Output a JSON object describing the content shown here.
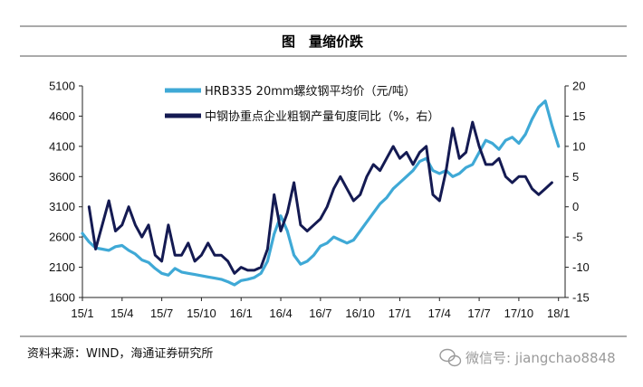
{
  "chart_data": {
    "type": "line",
    "title": "图　量缩价跌",
    "x_tick_labels": [
      "15/1",
      "15/4",
      "15/7",
      "15/10",
      "16/1",
      "16/4",
      "16/7",
      "16/10",
      "17/1",
      "17/4",
      "17/7",
      "17/10",
      "18/1"
    ],
    "x_range_months": [
      0,
      36.5
    ],
    "y_left": {
      "ticks": [
        1600,
        2100,
        2600,
        3100,
        3600,
        4100,
        4600,
        5100
      ],
      "range": [
        1600,
        5100
      ]
    },
    "y_right": {
      "ticks": [
        -15,
        -10,
        -5,
        0,
        5,
        10,
        15,
        20
      ],
      "range": [
        -15,
        20
      ]
    },
    "series": [
      {
        "name": "HRB335 20mm螺纹钢平均价（元/吨）",
        "axis": "left",
        "color": "#3fa9d6",
        "x": [
          0,
          0.5,
          1,
          1.5,
          2,
          2.5,
          3,
          3.5,
          4,
          4.5,
          5,
          5.5,
          6,
          6.5,
          7,
          7.5,
          8,
          8.5,
          9,
          9.5,
          10,
          10.5,
          11,
          11.5,
          12,
          12.5,
          13,
          13.5,
          14,
          14.5,
          15,
          15.5,
          16,
          16.5,
          17,
          17.5,
          18,
          18.5,
          19,
          19.5,
          20,
          20.5,
          21,
          21.5,
          22,
          22.5,
          23,
          23.5,
          24,
          24.5,
          25,
          25.5,
          26,
          26.5,
          27,
          27.5,
          28,
          28.5,
          29,
          29.5,
          30,
          30.5,
          31,
          31.5,
          32,
          32.5,
          33,
          33.5,
          34,
          34.5,
          35,
          35.5,
          36
        ],
        "values": [
          2660,
          2520,
          2420,
          2400,
          2380,
          2440,
          2460,
          2380,
          2320,
          2220,
          2180,
          2080,
          2000,
          1970,
          2080,
          2020,
          2000,
          1980,
          1960,
          1940,
          1920,
          1900,
          1860,
          1810,
          1880,
          1900,
          1930,
          2000,
          2200,
          2650,
          2950,
          2700,
          2300,
          2150,
          2200,
          2300,
          2450,
          2500,
          2600,
          2550,
          2500,
          2550,
          2700,
          2850,
          3000,
          3150,
          3250,
          3400,
          3500,
          3600,
          3700,
          3850,
          3900,
          3700,
          3650,
          3700,
          3600,
          3650,
          3750,
          3800,
          4000,
          4200,
          4150,
          4050,
          4200,
          4250,
          4150,
          4300,
          4550,
          4750,
          4850,
          4450,
          4100
        ]
      },
      {
        "name": "中钢协重点企业粗钢产量旬度同比（%，右）",
        "axis": "right",
        "color": "#141a52",
        "x": [
          0.5,
          1,
          1.5,
          2,
          2.5,
          3,
          3.5,
          4,
          4.5,
          5,
          5.5,
          6,
          6.5,
          7,
          7.5,
          8,
          8.5,
          9,
          9.5,
          10,
          10.5,
          11,
          11.5,
          12,
          12.5,
          13,
          13.5,
          14,
          14.5,
          15,
          15.5,
          16,
          16.5,
          17,
          17.5,
          18,
          18.5,
          19,
          19.5,
          20,
          20.5,
          21,
          21.5,
          22,
          22.5,
          23,
          23.5,
          24,
          24.5,
          25,
          25.5,
          26,
          26.5,
          27,
          27.5,
          28,
          28.5,
          29,
          29.5,
          30,
          30.5,
          31,
          31.5,
          32,
          32.5,
          33,
          33.5,
          34,
          34.5,
          35,
          35.5
        ],
        "values": [
          0,
          -7,
          -3,
          1,
          -4,
          -3,
          0,
          -3,
          -5,
          -3,
          -8,
          -9,
          -3,
          -8,
          -8,
          -6,
          -9,
          -8,
          -6,
          -8,
          -8,
          -9,
          -11,
          -10,
          -10.5,
          -10.5,
          -10,
          -7,
          2,
          -4,
          -1,
          4,
          -3,
          -4,
          -3,
          -2,
          0,
          3,
          5,
          3,
          1,
          2,
          5,
          7,
          6,
          8,
          10,
          8,
          9,
          7,
          9,
          10,
          2,
          1,
          6,
          13,
          8,
          9,
          14,
          10,
          7,
          7,
          8,
          5,
          4,
          5,
          5,
          3,
          2,
          3,
          4
        ]
      }
    ],
    "legend": [
      "HRB335 20mm螺纹钢平均价（元/吨）",
      "中钢协重点企业粗钢产量旬度同比（%，右）"
    ],
    "source": "资料来源：WIND，海通证券研究所",
    "watermark": "微信号: jiangchao8848"
  }
}
